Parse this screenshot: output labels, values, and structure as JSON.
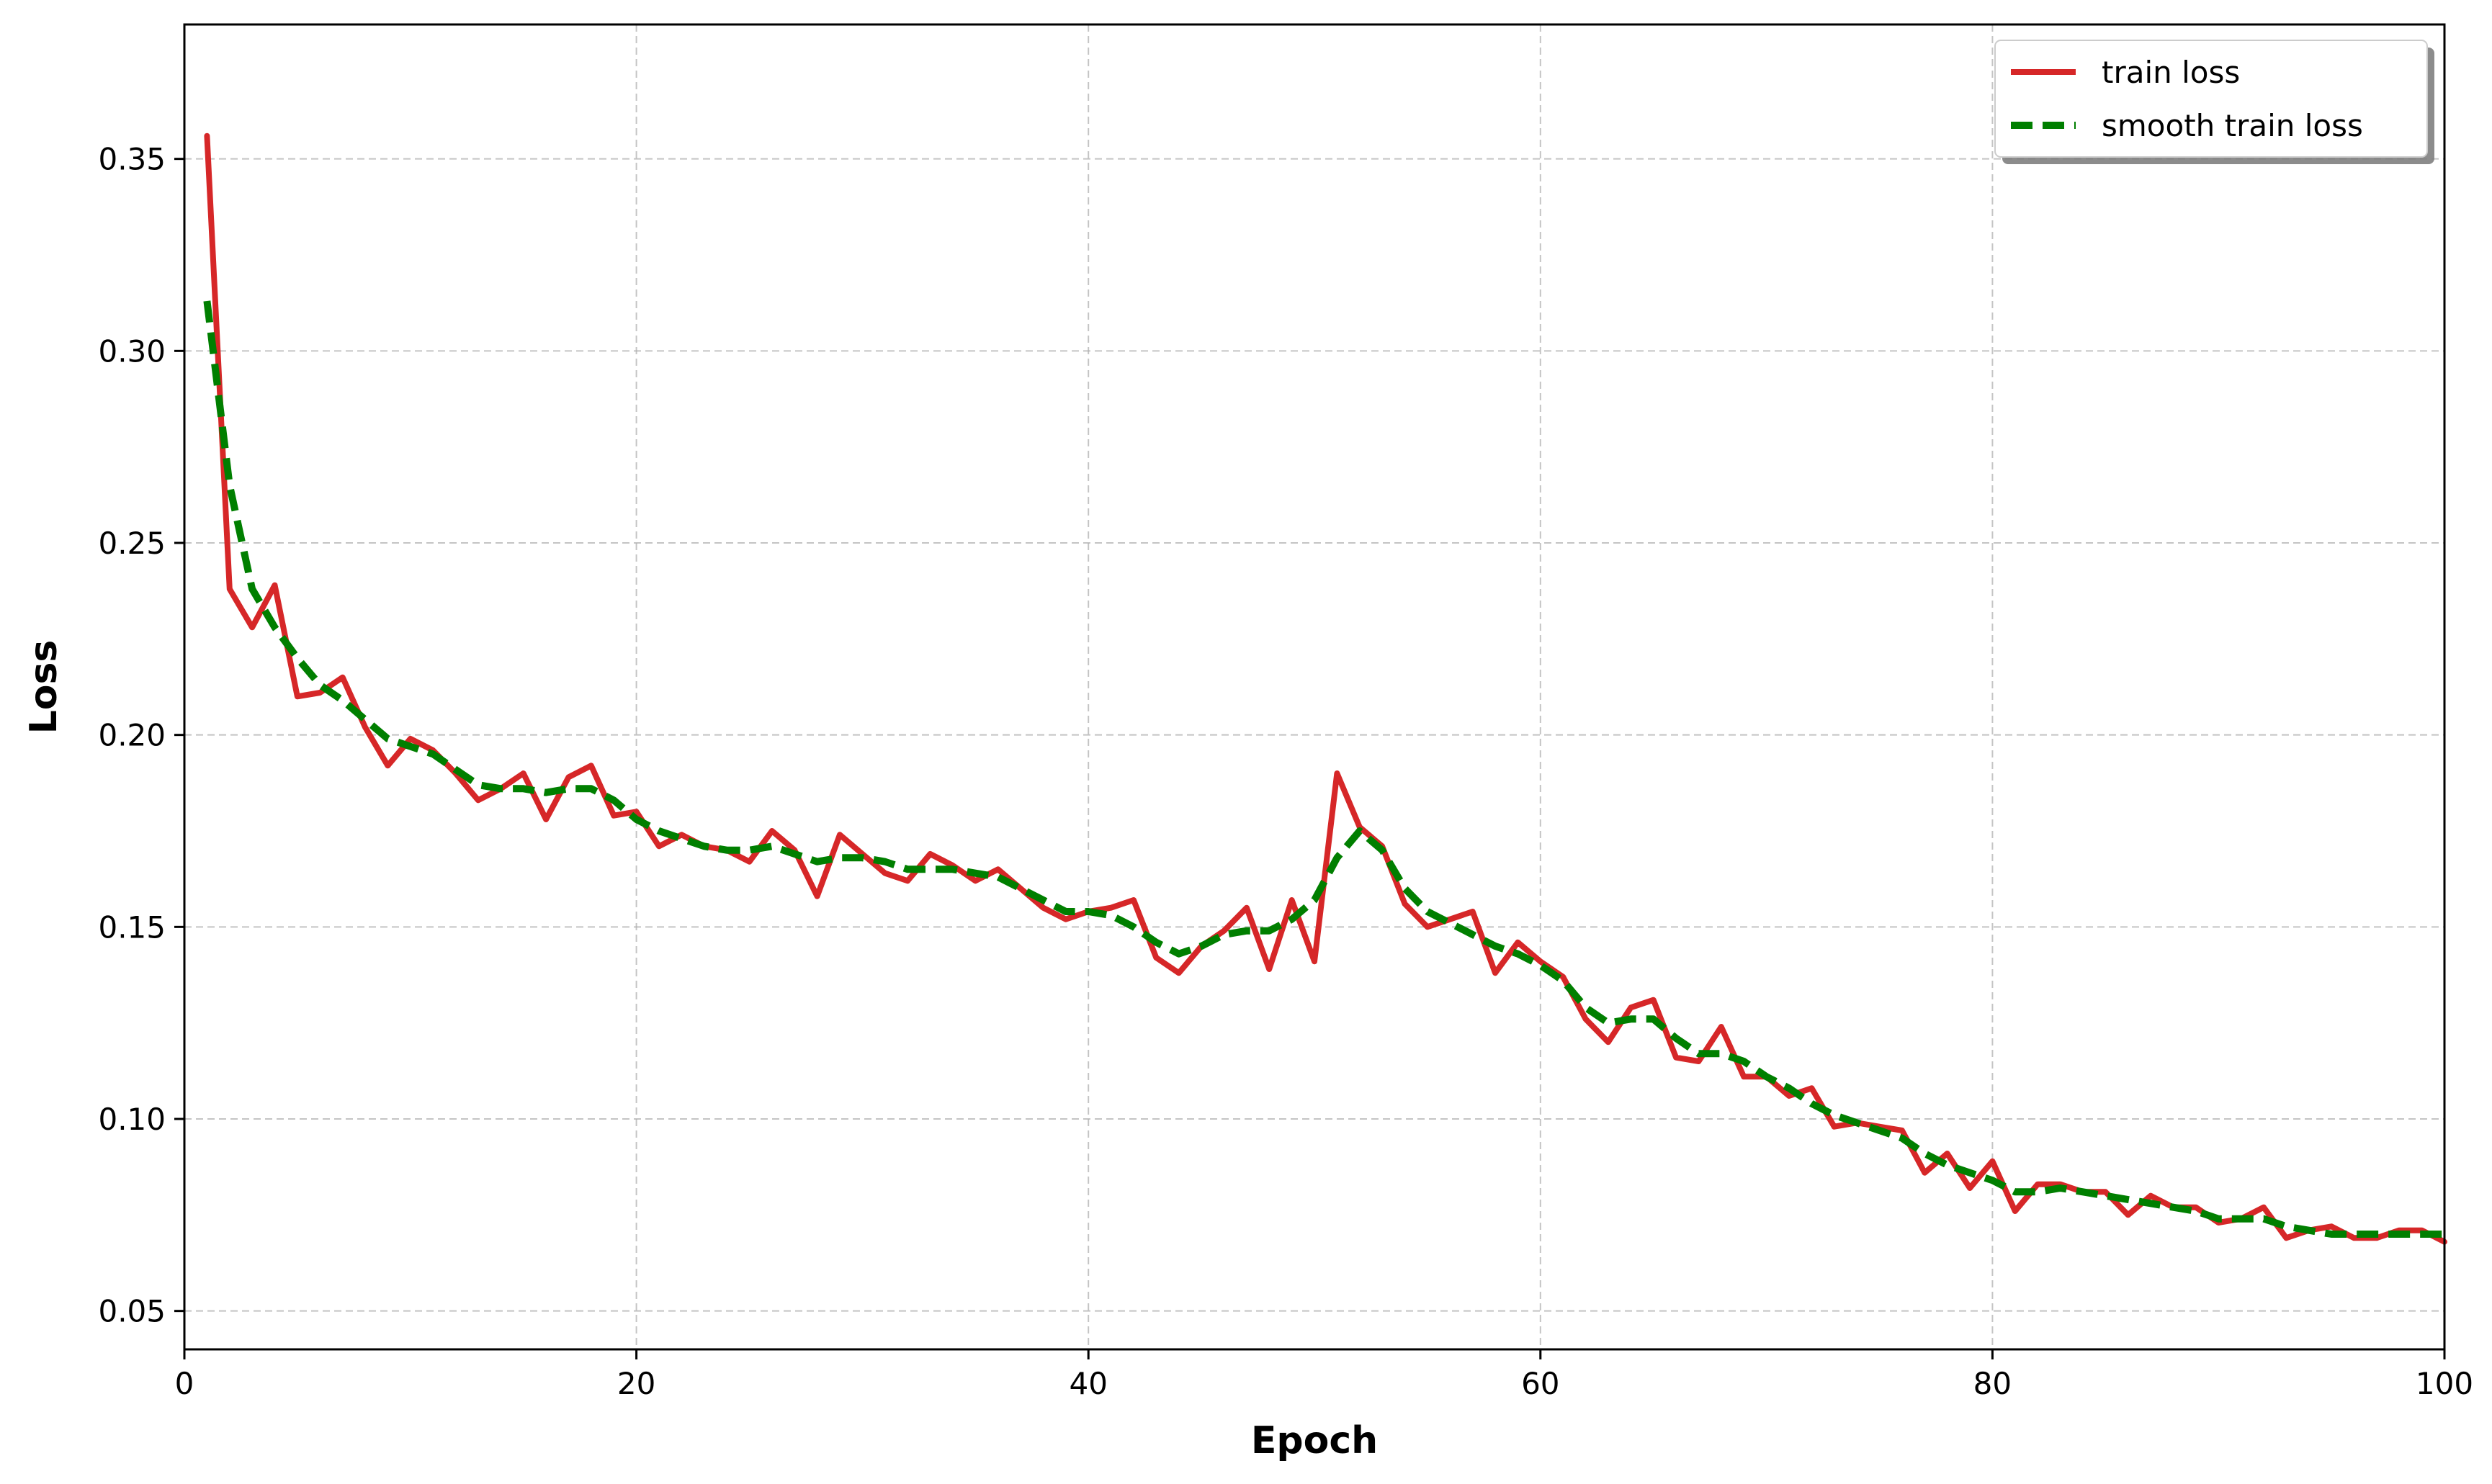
{
  "chart_data": {
    "type": "line",
    "title": "",
    "xlabel": "Epoch",
    "ylabel": "Loss",
    "xlim": [
      0,
      100
    ],
    "ylim": [
      0.04,
      0.385
    ],
    "x_ticks": [
      0,
      20,
      40,
      60,
      80,
      100
    ],
    "x_tick_labels": [
      "0",
      "20",
      "40",
      "60",
      "80",
      "100"
    ],
    "y_ticks": [
      0.05,
      0.1,
      0.15,
      0.2,
      0.25,
      0.3,
      0.35
    ],
    "y_tick_labels": [
      "0.05",
      "0.10",
      "0.15",
      "0.20",
      "0.25",
      "0.30",
      "0.35"
    ],
    "grid": true,
    "legend_position": "top-right",
    "x": [
      1,
      2,
      3,
      4,
      5,
      6,
      7,
      8,
      9,
      10,
      11,
      12,
      13,
      14,
      15,
      16,
      17,
      18,
      19,
      20,
      21,
      22,
      23,
      24,
      25,
      26,
      27,
      28,
      29,
      30,
      31,
      32,
      33,
      34,
      35,
      36,
      37,
      38,
      39,
      40,
      41,
      42,
      43,
      44,
      45,
      46,
      47,
      48,
      49,
      50,
      51,
      52,
      53,
      54,
      55,
      56,
      57,
      58,
      59,
      60,
      61,
      62,
      63,
      64,
      65,
      66,
      67,
      68,
      69,
      70,
      71,
      72,
      73,
      74,
      75,
      76,
      77,
      78,
      79,
      80,
      81,
      82,
      83,
      84,
      85,
      86,
      87,
      88,
      89,
      90,
      91,
      92,
      93,
      94,
      95,
      96,
      97,
      98,
      99,
      100
    ],
    "series": [
      {
        "name": "train loss",
        "color": "#d62728",
        "style": "solid",
        "values": [
          0.356,
          0.238,
          0.228,
          0.239,
          0.21,
          0.211,
          0.215,
          0.202,
          0.192,
          0.199,
          0.196,
          0.19,
          0.183,
          0.186,
          0.19,
          0.178,
          0.189,
          0.192,
          0.179,
          0.18,
          0.171,
          0.174,
          0.171,
          0.17,
          0.167,
          0.175,
          0.17,
          0.158,
          0.174,
          0.169,
          0.164,
          0.162,
          0.169,
          0.166,
          0.162,
          0.165,
          0.16,
          0.155,
          0.152,
          0.154,
          0.155,
          0.157,
          0.142,
          0.138,
          0.145,
          0.149,
          0.155,
          0.139,
          0.157,
          0.141,
          0.19,
          0.176,
          0.171,
          0.156,
          0.15,
          0.152,
          0.154,
          0.138,
          0.146,
          0.141,
          0.137,
          0.126,
          0.12,
          0.129,
          0.131,
          0.116,
          0.115,
          0.124,
          0.111,
          0.111,
          0.106,
          0.108,
          0.098,
          0.099,
          0.098,
          0.097,
          0.086,
          0.091,
          0.082,
          0.089,
          0.076,
          0.083,
          0.083,
          0.081,
          0.081,
          0.075,
          0.08,
          0.077,
          0.077,
          0.073,
          0.074,
          0.077,
          0.069,
          0.071,
          0.072,
          0.069,
          0.069,
          0.071,
          0.071,
          0.068
        ]
      },
      {
        "name": "smooth train loss",
        "color": "#007f00",
        "style": "dashed",
        "values": [
          0.313,
          0.265,
          0.238,
          0.228,
          0.22,
          0.213,
          0.209,
          0.204,
          0.199,
          0.197,
          0.195,
          0.191,
          0.187,
          0.186,
          0.186,
          0.185,
          0.186,
          0.186,
          0.183,
          0.178,
          0.175,
          0.173,
          0.171,
          0.17,
          0.17,
          0.171,
          0.169,
          0.167,
          0.168,
          0.168,
          0.167,
          0.165,
          0.165,
          0.165,
          0.164,
          0.163,
          0.16,
          0.157,
          0.154,
          0.154,
          0.153,
          0.15,
          0.146,
          0.143,
          0.145,
          0.148,
          0.149,
          0.149,
          0.152,
          0.157,
          0.168,
          0.175,
          0.17,
          0.16,
          0.154,
          0.151,
          0.148,
          0.145,
          0.143,
          0.14,
          0.136,
          0.129,
          0.125,
          0.126,
          0.126,
          0.121,
          0.117,
          0.117,
          0.115,
          0.111,
          0.108,
          0.104,
          0.101,
          0.099,
          0.097,
          0.095,
          0.091,
          0.088,
          0.086,
          0.084,
          0.081,
          0.081,
          0.082,
          0.081,
          0.08,
          0.079,
          0.078,
          0.077,
          0.076,
          0.074,
          0.074,
          0.074,
          0.072,
          0.071,
          0.07,
          0.07,
          0.07,
          0.07,
          0.07,
          0.07
        ]
      }
    ]
  }
}
